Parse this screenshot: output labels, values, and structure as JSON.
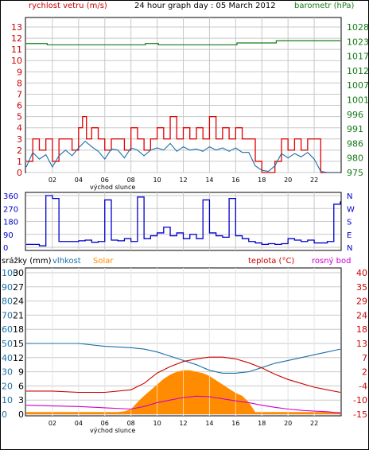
{
  "chart_data": [
    {
      "type": "line",
      "title": "24 hour graph day : 05 March 2012",
      "left_axis_label": "rychlost vetru (m/s)",
      "right_axis_label": "barometr (hPa)",
      "x_tick_labels": [
        "02",
        "04",
        "06",
        "08",
        "10",
        "12",
        "14",
        "16",
        "18",
        "20",
        "22"
      ],
      "x_axis_note": "východ slunce",
      "ylim_left": [
        0,
        13
      ],
      "left_ticks": [
        "0",
        "1",
        "2",
        "3",
        "4",
        "5",
        "6",
        "7",
        "8",
        "9",
        "10",
        "11",
        "12",
        "13"
      ],
      "right_ticks": [
        "975",
        "980",
        "986",
        "991",
        "996",
        "1001",
        "1007",
        "1012",
        "1017",
        "1023",
        "1028"
      ],
      "ylim_right": [
        975,
        1028
      ],
      "grid": true,
      "series": [
        {
          "name": "rychlost vetru (m/s)",
          "color": "#e00000",
          "x": [
            0,
            0.5,
            1,
            1.5,
            2,
            2.5,
            3,
            3.5,
            4,
            4.3,
            4.6,
            5,
            5.5,
            6,
            6.5,
            7,
            7.5,
            8,
            8.5,
            9,
            9.5,
            10,
            10.5,
            11,
            11.5,
            12,
            12.5,
            13,
            13.5,
            14,
            14.5,
            15,
            15.5,
            16,
            16.5,
            17,
            17.5,
            18,
            18.5,
            19,
            19.5,
            20,
            20.5,
            21,
            21.5,
            22,
            22.5,
            23,
            23.5,
            24
          ],
          "y": [
            1,
            3,
            2,
            3,
            1,
            3,
            3,
            2,
            4,
            5,
            3,
            4,
            3,
            2,
            3,
            3,
            2,
            4,
            3,
            2,
            3,
            4,
            3,
            5,
            3,
            4,
            3,
            4,
            3,
            5,
            3,
            4,
            3,
            4,
            3,
            3,
            1,
            0,
            0,
            1,
            3,
            2,
            3,
            2,
            3,
            3,
            0,
            0,
            0,
            0
          ]
        },
        {
          "name": "gust (m/s)",
          "color": "#1a6fa8",
          "x": [
            0,
            0.5,
            1,
            1.5,
            2,
            2.5,
            3,
            3.5,
            4,
            4.5,
            5,
            5.5,
            6,
            6.5,
            7,
            7.5,
            8,
            8.5,
            9,
            9.5,
            10,
            10.5,
            11,
            11.5,
            12,
            12.5,
            13,
            13.5,
            14,
            14.5,
            15,
            15.5,
            16,
            16.5,
            17,
            17.5,
            18,
            18.5,
            19,
            19.5,
            20,
            20.5,
            21,
            21.5,
            22,
            22.5,
            23,
            23.5,
            24
          ],
          "y": [
            0.5,
            1.8,
            1.2,
            1.6,
            0.5,
            1.5,
            2,
            1.5,
            2.2,
            2.8,
            2.3,
            1.9,
            1.2,
            2.1,
            2,
            1.3,
            2.2,
            2,
            1.5,
            2,
            2.2,
            2,
            2.6,
            1.9,
            2.3,
            2,
            2.1,
            1.9,
            2.3,
            2,
            2.2,
            1.9,
            2.2,
            1.8,
            1.8,
            0.6,
            0.2,
            0.1,
            0.6,
            1.7,
            1.3,
            1.7,
            1.4,
            1.8,
            1.2,
            0.1,
            0,
            0,
            0
          ]
        },
        {
          "name": "barometr (hPa)",
          "color": "#157a15",
          "axis": "right",
          "x": [
            0,
            1.5,
            1.6,
            9,
            9.1,
            10,
            10.1,
            16,
            16.1,
            19,
            19.1,
            24
          ],
          "y": [
            1022,
            1022,
            1021.5,
            1021.5,
            1022,
            1022,
            1021.5,
            1021.5,
            1022.2,
            1022.2,
            1023,
            1023
          ]
        }
      ]
    },
    {
      "type": "line",
      "title": "",
      "left_ticks": [
        "0",
        "90",
        "180",
        "270",
        "360"
      ],
      "right_ticks": [
        "N",
        "W",
        "S",
        "E",
        "N"
      ],
      "ylim": [
        0,
        360
      ],
      "series": [
        {
          "name": "wind direction",
          "color": "#0000cc",
          "x": [
            0,
            1,
            1.5,
            2,
            2.5,
            3,
            3.5,
            4,
            4.5,
            5,
            5.5,
            6,
            6.5,
            7,
            7.5,
            8,
            8.5,
            9,
            9.5,
            10,
            10.5,
            11,
            11.5,
            12,
            12.5,
            13,
            13.5,
            14,
            14.5,
            15,
            15.5,
            16,
            16.5,
            17,
            17.5,
            18,
            18.5,
            19,
            19.5,
            20,
            20.5,
            21,
            21.5,
            22,
            22.5,
            23,
            23.5,
            24
          ],
          "y": [
            20,
            10,
            360,
            340,
            40,
            40,
            40,
            45,
            50,
            35,
            40,
            330,
            50,
            45,
            60,
            40,
            350,
            60,
            80,
            100,
            140,
            80,
            100,
            60,
            90,
            60,
            330,
            100,
            80,
            70,
            340,
            80,
            60,
            40,
            30,
            20,
            25,
            20,
            25,
            60,
            50,
            40,
            50,
            30,
            30,
            40,
            300,
            320
          ]
        }
      ]
    },
    {
      "type": "area",
      "title": "",
      "labels": [
        "srážky (mm)",
        "vlhkost",
        "Solar",
        "teplota (°C)",
        "rosný bod"
      ],
      "x_tick_labels": [
        "02",
        "04",
        "06",
        "08",
        "10",
        "12",
        "14",
        "16",
        "18",
        "20",
        "22"
      ],
      "x_axis_note": "východ slunce",
      "rain_ticks": [
        "0",
        "10",
        "20",
        "30",
        "40",
        "50",
        "60",
        "70",
        "80",
        "90",
        "100"
      ],
      "humidity_ticks": [
        "0",
        "3",
        "6",
        "9",
        "12",
        "15",
        "18",
        "21",
        "24",
        "27",
        "30"
      ],
      "temp_ticks": [
        "-15",
        "-10",
        "-4",
        "2",
        "7",
        "13",
        "18",
        "24",
        "29",
        "35",
        "40"
      ],
      "ylim_humidity": [
        0,
        100
      ],
      "ylim_temp": [
        -15,
        40
      ],
      "series": [
        {
          "name": "vlhkost",
          "color": "#1a6fa8",
          "x": [
            0,
            2,
            4,
            6,
            8,
            9,
            10,
            11,
            12,
            13,
            14,
            15,
            16,
            17,
            18,
            19,
            20,
            21,
            22,
            23,
            24
          ],
          "y": [
            50,
            50,
            50,
            48,
            47,
            46,
            44,
            41,
            38,
            35,
            31,
            29,
            29,
            30,
            33,
            36,
            38,
            40,
            42,
            44,
            46
          ]
        },
        {
          "name": "teplota (°C)",
          "color": "#cc0000",
          "x": [
            0,
            2,
            4,
            6,
            8,
            9,
            10,
            11,
            12,
            13,
            14,
            15,
            16,
            17,
            18,
            19,
            20,
            21,
            22,
            23,
            24
          ],
          "y": [
            -6,
            -6,
            -6.5,
            -6.5,
            -5.5,
            -3,
            1,
            3.5,
            5.5,
            6.5,
            7.2,
            7.2,
            6.5,
            5,
            3,
            0.5,
            -1.5,
            -3,
            -4.5,
            -5.5,
            -6.5
          ]
        },
        {
          "name": "rosný bod",
          "color": "#cc00cc",
          "x": [
            0,
            2,
            4,
            6,
            8,
            9,
            10,
            11,
            12,
            13,
            14,
            15,
            16,
            17,
            18,
            19,
            20,
            21,
            22,
            23,
            24
          ],
          "y": [
            -11.5,
            -11.8,
            -12,
            -12.5,
            -13,
            -12,
            -10.5,
            -9.5,
            -8.5,
            -8,
            -8.2,
            -9,
            -9.8,
            -10.5,
            -11.5,
            -12.3,
            -13,
            -13.5,
            -13.8,
            -14,
            -14.5
          ]
        },
        {
          "name": "Solar",
          "color": "#ff8c00",
          "x": [
            0,
            6.5,
            7,
            7.5,
            8,
            8.5,
            9,
            9.5,
            10,
            10.5,
            11,
            11.5,
            12,
            12.5,
            13,
            13.5,
            14,
            14.5,
            15,
            15.5,
            16,
            16.5,
            17,
            17.5,
            18,
            24
          ],
          "y": [
            1.5,
            1.5,
            1.5,
            2,
            3.5,
            8.5,
            13,
            17,
            21,
            25,
            28,
            30,
            31,
            31,
            30,
            29,
            27,
            24,
            21,
            18,
            15,
            13,
            8.5,
            1.5,
            1.5,
            1.5
          ]
        }
      ]
    }
  ]
}
